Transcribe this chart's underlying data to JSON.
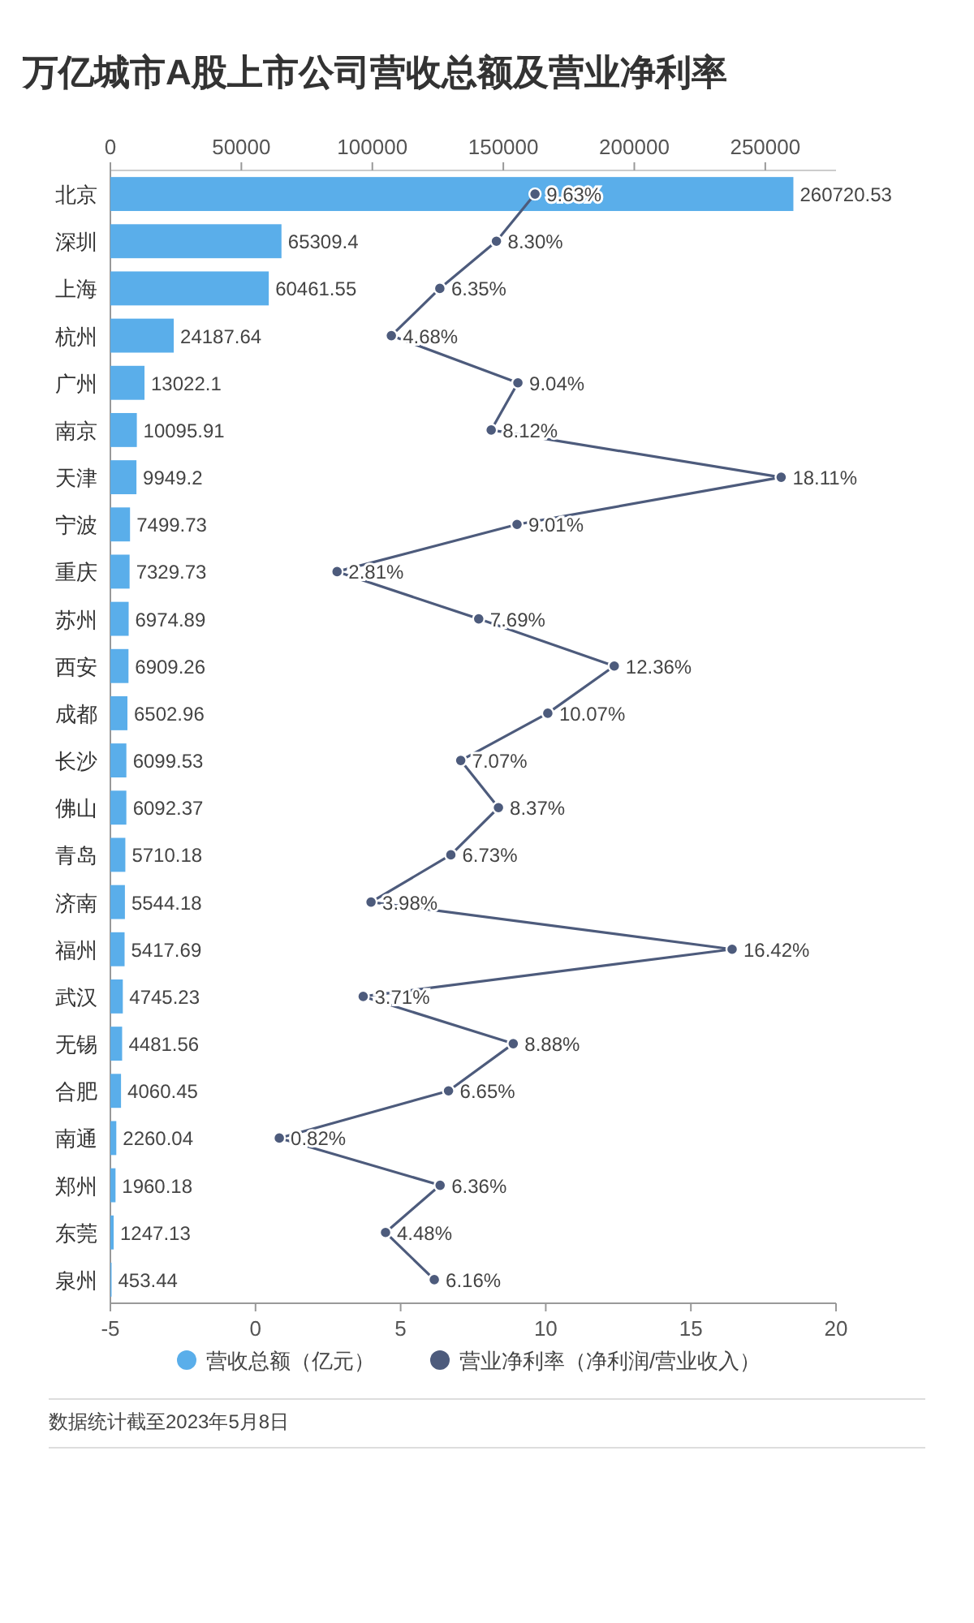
{
  "chart_data": {
    "type": "bar",
    "orientation": "horizontal",
    "title": "万亿城市A股上市公司营收总额及营业净利率",
    "categories": [
      "北京",
      "深圳",
      "上海",
      "杭州",
      "广州",
      "南京",
      "天津",
      "宁波",
      "重庆",
      "苏州",
      "西安",
      "成都",
      "长沙",
      "佛山",
      "青岛",
      "济南",
      "福州",
      "武汉",
      "无锡",
      "合肥",
      "南通",
      "郑州",
      "东莞",
      "泉州"
    ],
    "series": [
      {
        "name": "营收总额（亿元）",
        "color": "#5aaeea",
        "axis": "x2",
        "values": [
          260720.53,
          65309.4,
          60461.55,
          24187.64,
          13022.1,
          10095.91,
          9949.2,
          7499.73,
          7329.73,
          6974.89,
          6909.26,
          6502.96,
          6099.53,
          6092.37,
          5710.18,
          5544.18,
          5417.69,
          4745.23,
          4481.56,
          4060.45,
          2260.04,
          1960.18,
          1247.13,
          453.44
        ],
        "value_labels": [
          "260720.53",
          "65309.4",
          "60461.55",
          "24187.64",
          "13022.1",
          "10095.91",
          "9949.2",
          "7499.73",
          "7329.73",
          "6974.89",
          "6909.26",
          "6502.96",
          "6099.53",
          "6092.37",
          "5710.18",
          "5544.18",
          "5417.69",
          "4745.23",
          "4481.56",
          "4060.45",
          "2260.04",
          "1960.18",
          "1247.13",
          "453.44"
        ]
      },
      {
        "name": "营业净利率（净利润/营业收入）",
        "type": "line",
        "color": "#4d5b7c",
        "marker": "circle",
        "values": [
          9.63,
          8.3,
          6.35,
          4.68,
          9.04,
          8.12,
          18.11,
          9.01,
          2.81,
          7.69,
          12.36,
          10.07,
          7.07,
          8.37,
          6.73,
          3.98,
          16.42,
          3.71,
          8.88,
          6.65,
          0.82,
          6.36,
          4.48,
          6.16
        ],
        "value_labels": [
          "9.63%",
          "8.30%",
          "6.35%",
          "4.68%",
          "9.04%",
          "8.12%",
          "18.11%",
          "9.01%",
          "2.81%",
          "7.69%",
          "12.36%",
          "10.07%",
          "7.07%",
          "8.37%",
          "6.73%",
          "3.98%",
          "16.42%",
          "3.71%",
          "8.88%",
          "6.65%",
          "0.82%",
          "6.36%",
          "4.48%",
          "6.16%"
        ]
      }
    ],
    "xlim": [
      -5,
      20
    ],
    "xticks": [
      -5,
      0,
      5,
      10,
      15,
      20
    ],
    "x2lim": [
      0,
      277000
    ],
    "x2ticks": [
      0,
      50000,
      100000,
      150000,
      200000,
      250000
    ],
    "legend": "bottom",
    "annotations": [
      "数据统计截至2023年5月8日"
    ]
  }
}
